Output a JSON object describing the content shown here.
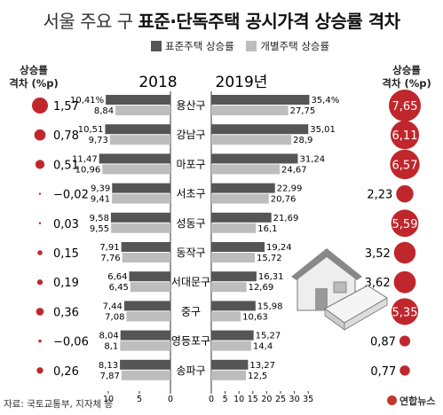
{
  "title": {
    "part1": "서울 주요 구 ",
    "part2": "표준·단독주택 공시가격 상승률 격차"
  },
  "legend": {
    "standard": "표준주택 상승률",
    "individual": "개별주택 상승률"
  },
  "left_header": "상승률\n격차 (%p)",
  "right_header": "상승률\n격차 (%p)",
  "source": "자료: 국토교통부, 지자체 등",
  "logo": "연합뉴스",
  "colors": {
    "standard": "#555555",
    "individual": "#bdbdbd",
    "gap": "#c0272d"
  },
  "chart_data": {
    "type": "bar",
    "panels": [
      "2018",
      "2019년"
    ],
    "categories": [
      "용산구",
      "강남구",
      "마포구",
      "서초구",
      "성동구",
      "동작구",
      "서대문구",
      "중구",
      "영등포구",
      "송파구"
    ],
    "series": [
      {
        "name": "표준주택 상승률",
        "panel": "2018",
        "values": [
          10.41,
          10.51,
          11.47,
          9.39,
          9.58,
          7.91,
          6.64,
          7.44,
          8.04,
          8.13
        ],
        "labels": [
          "10,41%",
          "10,51",
          "11,47",
          "9,39",
          "9,58",
          "7,91",
          "6,64",
          "7,44",
          "8,04",
          "8,13"
        ]
      },
      {
        "name": "개별주택 상승률",
        "panel": "2018",
        "values": [
          8.84,
          9.73,
          10.96,
          9.41,
          9.55,
          7.76,
          6.45,
          7.08,
          8.1,
          7.87
        ],
        "labels": [
          "8,84",
          "9,73",
          "10,96",
          "9,41",
          "9,55",
          "7,76",
          "6,45",
          "7,08",
          "8,1",
          "7,87"
        ]
      },
      {
        "name": "표준주택 상승률",
        "panel": "2019년",
        "values": [
          35.4,
          35.01,
          31.24,
          22.99,
          21.69,
          19.24,
          16.31,
          15.98,
          15.27,
          13.27
        ],
        "labels": [
          "35,4%",
          "35,01",
          "31,24",
          "22,99",
          "21,69",
          "19,24",
          "16,31",
          "15,98",
          "15,27",
          "13,27"
        ]
      },
      {
        "name": "개별주택 상승률",
        "panel": "2019년",
        "values": [
          27.75,
          28.9,
          24.67,
          20.76,
          16.1,
          15.72,
          12.69,
          10.63,
          14.4,
          12.5
        ],
        "labels": [
          "27,75",
          "28,9",
          "24,67",
          "20,76",
          "16,1",
          "15,72",
          "12,69",
          "10,63",
          "14,4",
          "12,5"
        ]
      }
    ],
    "gap_2018": {
      "values": [
        1.57,
        0.78,
        0.51,
        -0.02,
        0.03,
        0.15,
        0.19,
        0.36,
        -0.06,
        0.26
      ],
      "labels": [
        "1,57",
        "0,78",
        "0,51",
        "−0,02",
        "0,03",
        "0,15",
        "0,19",
        "0,36",
        "−0,06",
        "0,26"
      ]
    },
    "gap_2019": {
      "values": [
        7.65,
        6.11,
        6.57,
        2.23,
        5.59,
        3.52,
        3.62,
        5.35,
        0.87,
        0.77
      ],
      "labels": [
        "7,65",
        "6,11",
        "6,57",
        "2,23",
        "5,59",
        "3,52",
        "3,62",
        "5,35",
        "0,87",
        "0,77"
      ]
    },
    "axis_2018": {
      "ticks": [
        10,
        5,
        0
      ],
      "xlim": [
        0,
        12
      ]
    },
    "axis_2019": {
      "ticks": [
        0,
        5,
        10,
        15,
        20,
        25,
        30,
        35
      ],
      "xlim": [
        0,
        36
      ]
    }
  }
}
